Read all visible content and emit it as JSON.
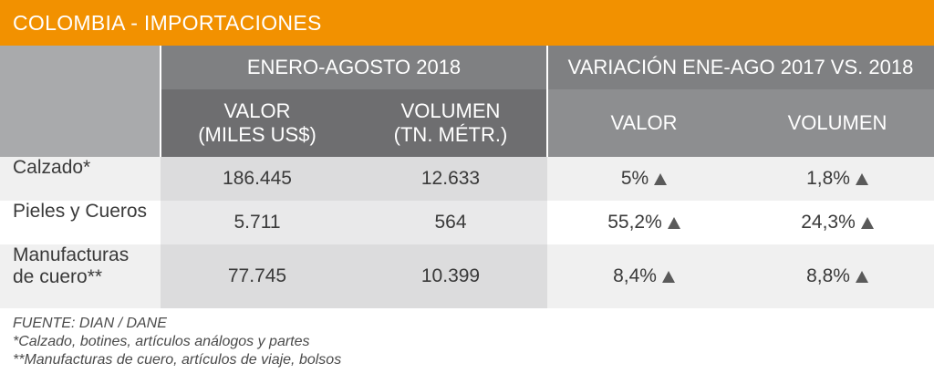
{
  "title": "COLOMBIA - IMPORTACIONES",
  "chart_data": {
    "type": "table",
    "group_headers": [
      "ENERO-AGOSTO 2018",
      "VARIACIÓN ENE-AGO 2017 VS. 2018"
    ],
    "column_headers": {
      "valor_miles": [
        "VALOR",
        "(MILES US$)"
      ],
      "volumen_tn": [
        "VOLUMEN",
        "(TN. MÉTR.)"
      ],
      "var_valor": "VALOR",
      "var_volumen": "VOLUMEN"
    },
    "rows": [
      {
        "label": [
          "Calzado*"
        ],
        "valor": "186.445",
        "volumen": "12.633",
        "var_valor": "5%",
        "var_volumen": "1,8%"
      },
      {
        "label": [
          "Pieles y Cueros"
        ],
        "valor": "5.711",
        "volumen": "564",
        "var_valor": "55,2%",
        "var_volumen": "24,3%"
      },
      {
        "label": [
          "Manufacturas",
          "de cuero**"
        ],
        "valor": "77.745",
        "volumen": "10.399",
        "var_valor": "8,4%",
        "var_volumen": "8,8%"
      }
    ],
    "trend_icon": "up-triangle-icon"
  },
  "notes": [
    "FUENTE: DIAN / DANE",
    "*Calzado, botines, artículos análogos y partes",
    "**Manufacturas de cuero, artículos de viaje, bolsos"
  ],
  "colors": {
    "title_bar": "#f29100",
    "header_dark": "#6e6e70",
    "row_alt": "#e4e4e5",
    "row_base": "#f3f3f3"
  }
}
